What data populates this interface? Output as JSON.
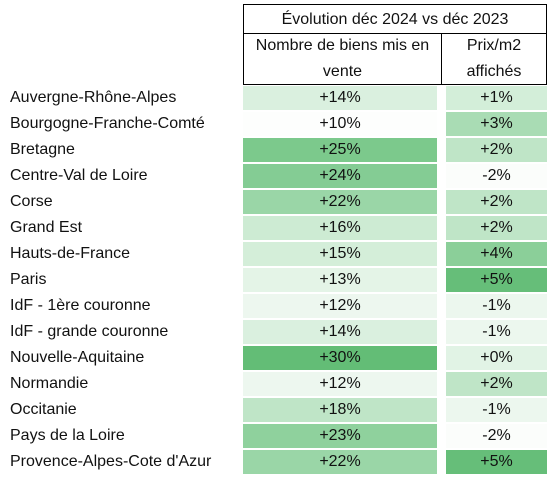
{
  "header": {
    "group_title": "Évolution déc 2024 vs déc 2023",
    "col_listings": "Nombre de biens mis en vente",
    "col_price": "Prix/m2 affichés"
  },
  "rows": [
    {
      "region": "Auvergne-Rhône-Alpes",
      "listings": "+14%",
      "price": "+1%",
      "listings_color": "#daf0df",
      "price_color": "#d3eed9"
    },
    {
      "region": "Bourgogne-Franche-Comté",
      "listings": "+10%",
      "price": "+3%",
      "listings_color": "#fdfefd",
      "price_color": "#a9dcb4"
    },
    {
      "region": "Bretagne",
      "listings": "+25%",
      "price": "+2%",
      "listings_color": "#7cc98c",
      "price_color": "#bfe5c7"
    },
    {
      "region": "Centre-Val de Loire",
      "listings": "+24%",
      "price": "-2%",
      "listings_color": "#84cc94",
      "price_color": "#fbfdfb"
    },
    {
      "region": "Corse",
      "listings": "+22%",
      "price": "+2%",
      "listings_color": "#9ad6a7",
      "price_color": "#bfe5c7"
    },
    {
      "region": "Grand Est",
      "listings": "+16%",
      "price": "+2%",
      "listings_color": "#cdebd3",
      "price_color": "#bfe5c7"
    },
    {
      "region": "Hauts-de-France",
      "listings": "+15%",
      "price": "+4%",
      "listings_color": "#d4eed9",
      "price_color": "#8bcf99"
    },
    {
      "region": "Paris",
      "listings": "+13%",
      "price": "+5%",
      "listings_color": "#e4f4e7",
      "price_color": "#66be79"
    },
    {
      "region": "IdF - 1ère couronne",
      "listings": "+12%",
      "price": "-1%",
      "listings_color": "#edf7ef",
      "price_color": "#ecf7ee"
    },
    {
      "region": "IdF - grande couronne",
      "listings": "+14%",
      "price": "-1%",
      "listings_color": "#daf0df",
      "price_color": "#ecf7ee"
    },
    {
      "region": "Nouvelle-Aquitaine",
      "listings": "+30%",
      "price": "+0%",
      "listings_color": "#63bd76",
      "price_color": "#e1f3e5"
    },
    {
      "region": "Normandie",
      "listings": "+12%",
      "price": "+2%",
      "listings_color": "#edf7ef",
      "price_color": "#bfe5c7"
    },
    {
      "region": "Occitanie",
      "listings": "+18%",
      "price": "-1%",
      "listings_color": "#bfe5c7",
      "price_color": "#ecf7ee"
    },
    {
      "region": "Pays de la Loire",
      "listings": "+23%",
      "price": "-2%",
      "listings_color": "#8fd19d",
      "price_color": "#fbfdfb"
    },
    {
      "region": "Provence-Alpes-Cote d'Azur",
      "listings": "+22%",
      "price": "+5%",
      "listings_color": "#9ad6a7",
      "price_color": "#66be79"
    }
  ]
}
